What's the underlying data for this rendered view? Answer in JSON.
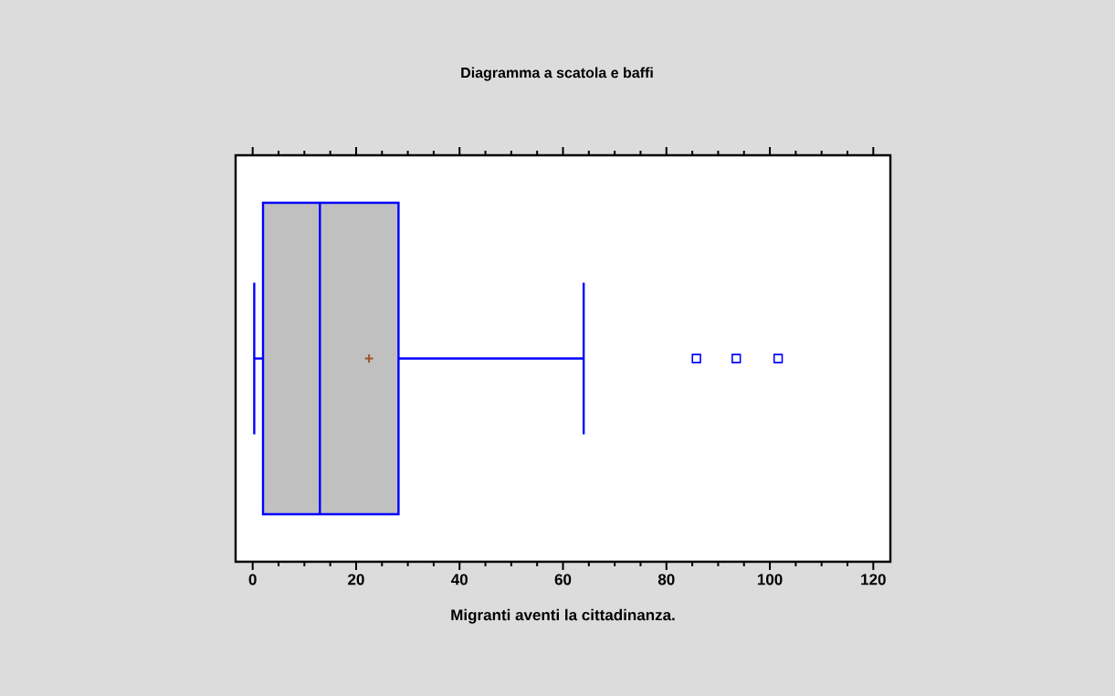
{
  "chart_data": {
    "type": "box",
    "title": "Diagramma a scatola e baffi",
    "xlabel": "Migranti aventi la cittadinanza.",
    "orientation": "horizontal",
    "series": [
      {
        "color": "#0000ff",
        "boxes": [
          {
            "low": 0.3,
            "q1": 2,
            "median": 13,
            "q3": 28.2,
            "high": 64,
            "mean": 22.5,
            "outliers": [
              85.8,
              93.5,
              101.6
            ]
          }
        ]
      }
    ],
    "xlim": [
      -3.3,
      123.3
    ],
    "xticks": [
      0,
      20,
      40,
      60,
      80,
      100,
      120
    ],
    "marker": "square",
    "tick_labels": "x"
  }
}
